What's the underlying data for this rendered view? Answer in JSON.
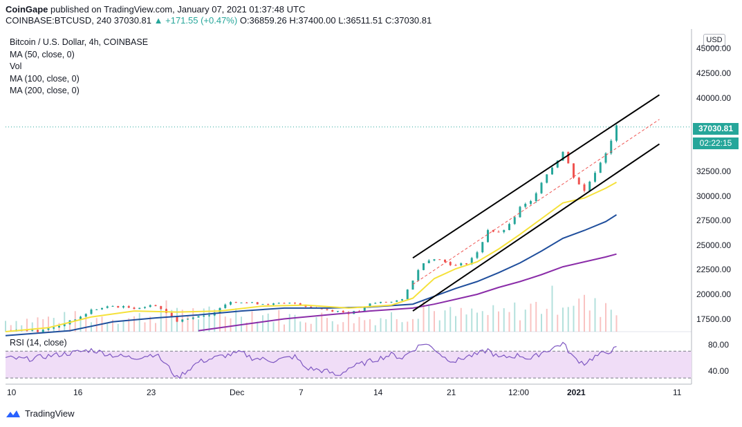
{
  "header": {
    "publisher": "CoinGape",
    "published_text": "published on TradingView.com, January 07, 2021 01:37:48 UTC"
  },
  "ohlc": {
    "symbol": "COINBASE:BTCUSD, 240",
    "last": "37030.81",
    "change": "▲ +171.55 (+0.47%)",
    "open": "O:36859.26",
    "high": "H:37400.00",
    "low": "L:36511.51",
    "close": "C:37030.81"
  },
  "legend": {
    "title": "Bitcoin / U.S. Dollar, 4h, COINBASE",
    "ma50": "MA (50, close, 0)",
    "vol": "Vol",
    "ma100": "MA (100, close, 0)",
    "ma200": "MA (200, close, 0)"
  },
  "rsi": {
    "label": "RSI (14, close)",
    "levels": [
      "80.00",
      "40.00"
    ]
  },
  "axis": {
    "currency": "USD",
    "price_ticks": [
      "45000.00",
      "42500.00",
      "40000.00",
      "32500.00",
      "30000.00",
      "27500.00",
      "25000.00",
      "22500.00",
      "20000.00",
      "17500.00"
    ],
    "time_ticks": [
      "10",
      "16",
      "23",
      "Dec",
      "7",
      "14",
      "21",
      "12:00",
      "2021",
      "11"
    ]
  },
  "price_tag": {
    "price": "37030.81",
    "countdown": "02:22:15"
  },
  "branding": {
    "name": "TradingView"
  },
  "colors": {
    "up": "#26a69a",
    "down": "#ef5350",
    "ma50": "#f5e13a",
    "ma100": "#1f4e9c",
    "ma200": "#8a2ca8",
    "rsi": "#7e57c2",
    "rsi_band": "#f0ddf7"
  },
  "chart_data": {
    "type": "candlestick",
    "title": "Bitcoin / U.S. Dollar, 4h, COINBASE",
    "ylim": [
      16200,
      47000
    ],
    "price_ticks": [
      45000,
      42500,
      40000,
      32500,
      30000,
      27500,
      25000,
      22500,
      20000,
      17500
    ],
    "last_price": 37030.81,
    "price_path": [
      [
        10,
        16300
      ],
      [
        12,
        16400
      ],
      [
        13,
        16200
      ],
      [
        15,
        16800
      ],
      [
        17,
        17700
      ],
      [
        18,
        18400
      ],
      [
        20,
        18800
      ],
      [
        22,
        18600
      ],
      [
        24,
        18900
      ],
      [
        25,
        18100
      ],
      [
        26,
        17300
      ],
      [
        27,
        17600
      ],
      [
        28,
        17700
      ],
      [
        29,
        17800
      ],
      [
        30,
        18700
      ],
      [
        31,
        19300
      ],
      [
        33,
        19100
      ],
      [
        35,
        19000
      ],
      [
        37,
        19100
      ],
      [
        38,
        18800
      ],
      [
        40,
        18400
      ],
      [
        41,
        18300
      ],
      [
        42,
        18100
      ],
      [
        43,
        18300
      ],
      [
        44,
        19000
      ],
      [
        45,
        19200
      ],
      [
        46,
        19300
      ],
      [
        47,
        19400
      ],
      [
        48,
        21500
      ],
      [
        49,
        23300
      ],
      [
        50,
        23700
      ],
      [
        51,
        23300
      ],
      [
        52,
        22900
      ],
      [
        53,
        23200
      ],
      [
        54,
        24200
      ],
      [
        55,
        26600
      ],
      [
        56,
        26200
      ],
      [
        57,
        27000
      ],
      [
        58,
        28800
      ],
      [
        59,
        29400
      ],
      [
        60,
        31500
      ],
      [
        61,
        33000
      ],
      [
        62,
        34500
      ],
      [
        63,
        32000
      ],
      [
        64,
        30500
      ],
      [
        65,
        32500
      ],
      [
        66,
        34500
      ],
      [
        67,
        37030
      ]
    ],
    "ma50": [
      [
        10,
        16200
      ],
      [
        14,
        16600
      ],
      [
        18,
        17700
      ],
      [
        22,
        18300
      ],
      [
        26,
        18200
      ],
      [
        30,
        18300
      ],
      [
        34,
        18800
      ],
      [
        38,
        18900
      ],
      [
        42,
        18600
      ],
      [
        46,
        18900
      ],
      [
        48,
        19600
      ],
      [
        50,
        21600
      ],
      [
        52,
        22600
      ],
      [
        54,
        23300
      ],
      [
        56,
        24600
      ],
      [
        58,
        26100
      ],
      [
        60,
        27700
      ],
      [
        62,
        29300
      ],
      [
        64,
        29800
      ],
      [
        66,
        30800
      ],
      [
        67,
        31400
      ]
    ],
    "ma100": [
      [
        10,
        15800
      ],
      [
        16,
        16300
      ],
      [
        20,
        17200
      ],
      [
        24,
        17600
      ],
      [
        28,
        17900
      ],
      [
        32,
        18300
      ],
      [
        36,
        18600
      ],
      [
        40,
        18600
      ],
      [
        44,
        18700
      ],
      [
        48,
        19000
      ],
      [
        50,
        19800
      ],
      [
        52,
        20600
      ],
      [
        54,
        21300
      ],
      [
        56,
        22200
      ],
      [
        58,
        23200
      ],
      [
        60,
        24400
      ],
      [
        62,
        25700
      ],
      [
        64,
        26500
      ],
      [
        66,
        27400
      ],
      [
        67,
        28100
      ]
    ],
    "ma200": [
      [
        28,
        16300
      ],
      [
        32,
        16900
      ],
      [
        36,
        17500
      ],
      [
        40,
        17900
      ],
      [
        44,
        18300
      ],
      [
        48,
        18600
      ],
      [
        50,
        19000
      ],
      [
        52,
        19500
      ],
      [
        54,
        20000
      ],
      [
        56,
        20700
      ],
      [
        58,
        21300
      ],
      [
        60,
        22000
      ],
      [
        62,
        22800
      ],
      [
        64,
        23300
      ],
      [
        66,
        23800
      ],
      [
        67,
        24100
      ]
    ],
    "channel": {
      "upper": [
        [
          48,
          23700
        ],
        [
          71,
          40300
        ]
      ],
      "lower": [
        [
          48,
          18300
        ],
        [
          71,
          35300
        ]
      ],
      "mid": [
        [
          48,
          21000
        ],
        [
          71,
          37800
        ]
      ]
    },
    "rsi": {
      "ylim": [
        25,
        95
      ],
      "levels": [
        70,
        30
      ],
      "tick_levels": [
        80,
        40
      ],
      "values": [
        [
          10,
          60
        ],
        [
          12,
          58
        ],
        [
          14,
          63
        ],
        [
          16,
          67
        ],
        [
          18,
          72
        ],
        [
          20,
          64
        ],
        [
          22,
          60
        ],
        [
          24,
          66
        ],
        [
          25,
          50
        ],
        [
          26,
          30
        ],
        [
          27,
          42
        ],
        [
          28,
          54
        ],
        [
          30,
          62
        ],
        [
          32,
          68
        ],
        [
          33,
          60
        ],
        [
          35,
          56
        ],
        [
          37,
          62
        ],
        [
          38,
          45
        ],
        [
          40,
          40
        ],
        [
          41,
          33
        ],
        [
          42,
          45
        ],
        [
          44,
          55
        ],
        [
          46,
          65
        ],
        [
          47,
          60
        ],
        [
          48,
          72
        ],
        [
          49,
          82
        ],
        [
          50,
          74
        ],
        [
          51,
          60
        ],
        [
          52,
          55
        ],
        [
          53,
          62
        ],
        [
          54,
          65
        ],
        [
          55,
          72
        ],
        [
          56,
          60
        ],
        [
          57,
          62
        ],
        [
          58,
          64
        ],
        [
          59,
          58
        ],
        [
          60,
          68
        ],
        [
          61,
          74
        ],
        [
          62,
          82
        ],
        [
          63,
          60
        ],
        [
          64,
          52
        ],
        [
          65,
          62
        ],
        [
          66,
          68
        ],
        [
          67,
          74
        ]
      ]
    },
    "volume": [
      [
        10,
        0.3
      ],
      [
        14,
        0.35
      ],
      [
        18,
        0.4
      ],
      [
        22,
        0.38
      ],
      [
        24,
        0.46
      ],
      [
        26,
        0.7
      ],
      [
        28,
        0.45
      ],
      [
        32,
        0.55
      ],
      [
        36,
        0.4
      ],
      [
        40,
        0.38
      ],
      [
        44,
        0.35
      ],
      [
        48,
        0.52
      ],
      [
        49,
        0.9
      ],
      [
        50,
        0.55
      ],
      [
        52,
        0.45
      ],
      [
        54,
        0.5
      ],
      [
        56,
        0.48
      ],
      [
        58,
        0.6
      ],
      [
        60,
        0.72
      ],
      [
        61,
        0.85
      ],
      [
        62,
        1.0
      ],
      [
        63,
        0.9
      ],
      [
        64,
        0.75
      ],
      [
        65,
        0.65
      ],
      [
        66,
        0.8
      ],
      [
        67,
        0.55
      ]
    ]
  }
}
